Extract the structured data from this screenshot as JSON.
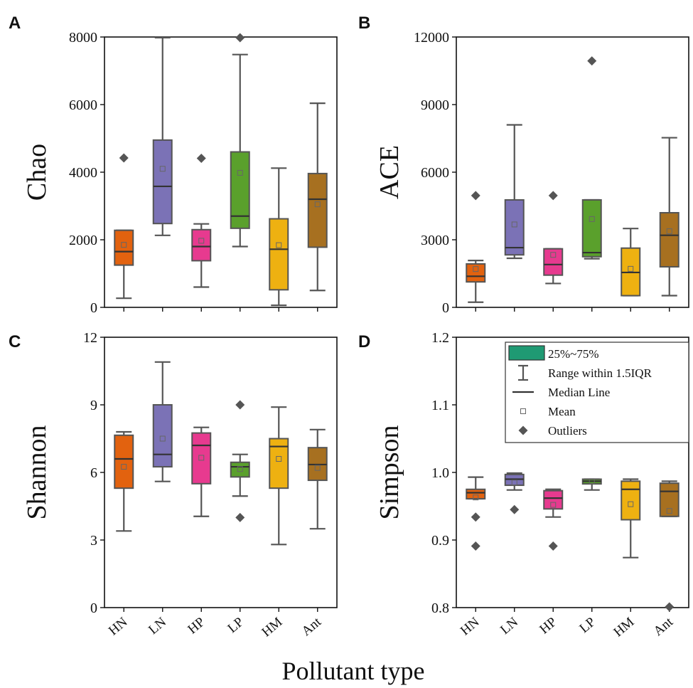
{
  "figure": {
    "xlabel": "Pollutant type",
    "colors": {
      "HN": "#e2620f",
      "LN": "#7b72b6",
      "HP": "#e73a8f",
      "LP": "#5aa02c",
      "HM": "#eeb111",
      "Ant": "#a77020"
    },
    "legend": {
      "items": [
        {
          "label": "25%~75%",
          "kind": "box",
          "color": "#1f9a73"
        },
        {
          "label": "Range within 1.5IQR",
          "kind": "whisker"
        },
        {
          "label": "Median Line",
          "kind": "median"
        },
        {
          "label": "Mean",
          "kind": "mean"
        },
        {
          "label": "Outliers",
          "kind": "outlier"
        }
      ]
    }
  },
  "chart_data": [
    {
      "type": "box",
      "panel": "A",
      "ylabel": "Chao",
      "ylim": [
        0,
        8000
      ],
      "yticks": [
        0,
        2000,
        4000,
        6000,
        8000
      ],
      "categories": [
        "HN",
        "LN",
        "HP",
        "LP",
        "HM",
        "Ant"
      ],
      "boxes": [
        {
          "q1": 1250,
          "median": 1650,
          "q3": 2280,
          "whislo": 270,
          "whishi": 2280,
          "mean": 1850,
          "outliers": [
            4420
          ]
        },
        {
          "q1": 2480,
          "median": 3580,
          "q3": 4950,
          "whislo": 2130,
          "whishi": 7980,
          "mean": 4100,
          "outliers": []
        },
        {
          "q1": 1380,
          "median": 1800,
          "q3": 2300,
          "whislo": 600,
          "whishi": 2470,
          "mean": 1970,
          "outliers": [
            4410
          ]
        },
        {
          "q1": 2340,
          "median": 2700,
          "q3": 4600,
          "whislo": 1800,
          "whishi": 7480,
          "mean": 3980,
          "outliers": [
            7980
          ]
        },
        {
          "q1": 520,
          "median": 1720,
          "q3": 2620,
          "whislo": 60,
          "whishi": 4120,
          "mean": 1840,
          "outliers": []
        },
        {
          "q1": 1780,
          "median": 3200,
          "q3": 3960,
          "whislo": 500,
          "whishi": 6040,
          "mean": 3050,
          "outliers": []
        }
      ]
    },
    {
      "type": "box",
      "panel": "B",
      "ylabel": "ACE",
      "ylim": [
        0,
        12000
      ],
      "yticks": [
        0,
        3000,
        6000,
        9000,
        12000
      ],
      "categories": [
        "HN",
        "LN",
        "HP",
        "LP",
        "HM",
        "Ant"
      ],
      "boxes": [
        {
          "q1": 1130,
          "median": 1380,
          "q3": 1930,
          "whislo": 230,
          "whishi": 2080,
          "mean": 1700,
          "outliers": [
            4960
          ]
        },
        {
          "q1": 2330,
          "median": 2650,
          "q3": 4770,
          "whislo": 2180,
          "whishi": 8100,
          "mean": 3680,
          "outliers": []
        },
        {
          "q1": 1430,
          "median": 1900,
          "q3": 2600,
          "whislo": 1060,
          "whishi": 2600,
          "mean": 2330,
          "outliers": [
            4960
          ]
        },
        {
          "q1": 2250,
          "median": 2430,
          "q3": 4770,
          "whislo": 2160,
          "whishi": 4770,
          "mean": 3920,
          "outliers": [
            10940
          ]
        },
        {
          "q1": 520,
          "median": 1550,
          "q3": 2630,
          "whislo": 520,
          "whishi": 3500,
          "mean": 1710,
          "outliers": []
        },
        {
          "q1": 1800,
          "median": 3200,
          "q3": 4200,
          "whislo": 520,
          "whishi": 7530,
          "mean": 3380,
          "outliers": []
        }
      ]
    },
    {
      "type": "box",
      "panel": "C",
      "ylabel": "Shannon",
      "ylim": [
        0,
        12
      ],
      "yticks": [
        0,
        3,
        6,
        9,
        12
      ],
      "categories": [
        "HN",
        "LN",
        "HP",
        "LP",
        "HM",
        "Ant"
      ],
      "boxes": [
        {
          "q1": 5.3,
          "median": 6.6,
          "q3": 7.65,
          "whislo": 3.4,
          "whishi": 7.8,
          "mean": 6.25,
          "outliers": []
        },
        {
          "q1": 6.25,
          "median": 6.8,
          "q3": 9.0,
          "whislo": 5.6,
          "whishi": 10.9,
          "mean": 7.5,
          "outliers": []
        },
        {
          "q1": 5.5,
          "median": 7.2,
          "q3": 7.75,
          "whislo": 4.05,
          "whishi": 8.0,
          "mean": 6.65,
          "outliers": []
        },
        {
          "q1": 5.8,
          "median": 6.25,
          "q3": 6.45,
          "whislo": 4.95,
          "whishi": 6.8,
          "mean": 6.15,
          "outliers": [
            9.0,
            4.0
          ]
        },
        {
          "q1": 5.3,
          "median": 7.15,
          "q3": 7.5,
          "whislo": 2.8,
          "whishi": 8.9,
          "mean": 6.6,
          "outliers": []
        },
        {
          "q1": 5.65,
          "median": 6.35,
          "q3": 7.1,
          "whislo": 3.5,
          "whishi": 7.9,
          "mean": 6.2,
          "outliers": []
        }
      ]
    },
    {
      "type": "box",
      "panel": "D",
      "ylabel": "Simpson",
      "ylim": [
        0.8,
        1.2
      ],
      "yticks": [
        0.8,
        0.9,
        1.0,
        1.1,
        1.2
      ],
      "categories": [
        "HN",
        "LN",
        "HP",
        "LP",
        "HM",
        "Ant"
      ],
      "boxes": [
        {
          "q1": 0.961,
          "median": 0.97,
          "q3": 0.975,
          "whislo": 0.961,
          "whishi": 0.993,
          "mean": 0.963,
          "outliers": [
            0.934,
            0.891
          ]
        },
        {
          "q1": 0.981,
          "median": 0.99,
          "q3": 0.997,
          "whislo": 0.974,
          "whishi": 0.999,
          "mean": 0.985,
          "outliers": [
            0.945
          ]
        },
        {
          "q1": 0.946,
          "median": 0.962,
          "q3": 0.973,
          "whislo": 0.934,
          "whishi": 0.975,
          "mean": 0.952,
          "outliers": [
            0.891
          ]
        },
        {
          "q1": 0.983,
          "median": 0.987,
          "q3": 0.99,
          "whislo": 0.974,
          "whishi": 0.99,
          "mean": 0.987,
          "outliers": []
        },
        {
          "q1": 0.93,
          "median": 0.975,
          "q3": 0.987,
          "whislo": 0.874,
          "whishi": 0.99,
          "mean": 0.953,
          "outliers": []
        },
        {
          "q1": 0.935,
          "median": 0.972,
          "q3": 0.984,
          "whislo": 0.935,
          "whishi": 0.987,
          "mean": 0.943,
          "outliers": [
            0.801
          ]
        }
      ]
    }
  ]
}
